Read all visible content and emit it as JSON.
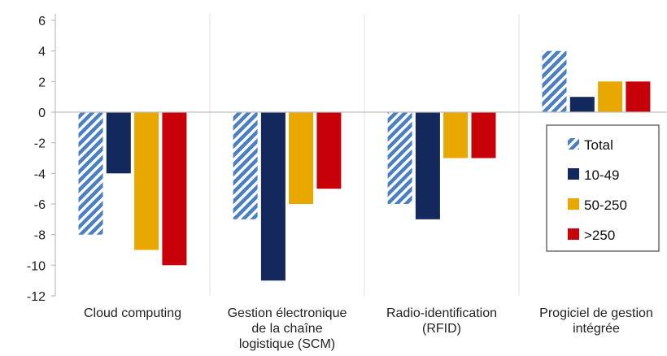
{
  "chart_data": {
    "type": "bar",
    "categories": [
      [
        "Cloud computing"
      ],
      [
        "Gestion électronique",
        "de la chaîne",
        "logistique (SCM)"
      ],
      [
        "Radio-identification",
        "(RFID)"
      ],
      [
        "Progiciel de gestion",
        "intégrée"
      ]
    ],
    "series": [
      {
        "name": "Total",
        "values": [
          -8,
          -7,
          -6,
          4
        ],
        "color": "#4a7fc4",
        "pattern": "hatch"
      },
      {
        "name": "10-49",
        "values": [
          -4,
          -11,
          -7,
          1
        ],
        "color": "#13285c"
      },
      {
        "name": "50-250",
        "values": [
          -9,
          -6,
          -3,
          2
        ],
        "color": "#e8a800"
      },
      {
        "name": ">250",
        "values": [
          -10,
          -5,
          -3,
          2
        ],
        "color": "#c8000a"
      }
    ],
    "ylim": [
      -12,
      6
    ],
    "yticks": [
      "6",
      "4",
      "2",
      "0",
      "-2",
      "-4",
      "-6",
      "-8",
      "-10",
      "-12"
    ],
    "grid": "vertical",
    "legend_position": "right"
  }
}
